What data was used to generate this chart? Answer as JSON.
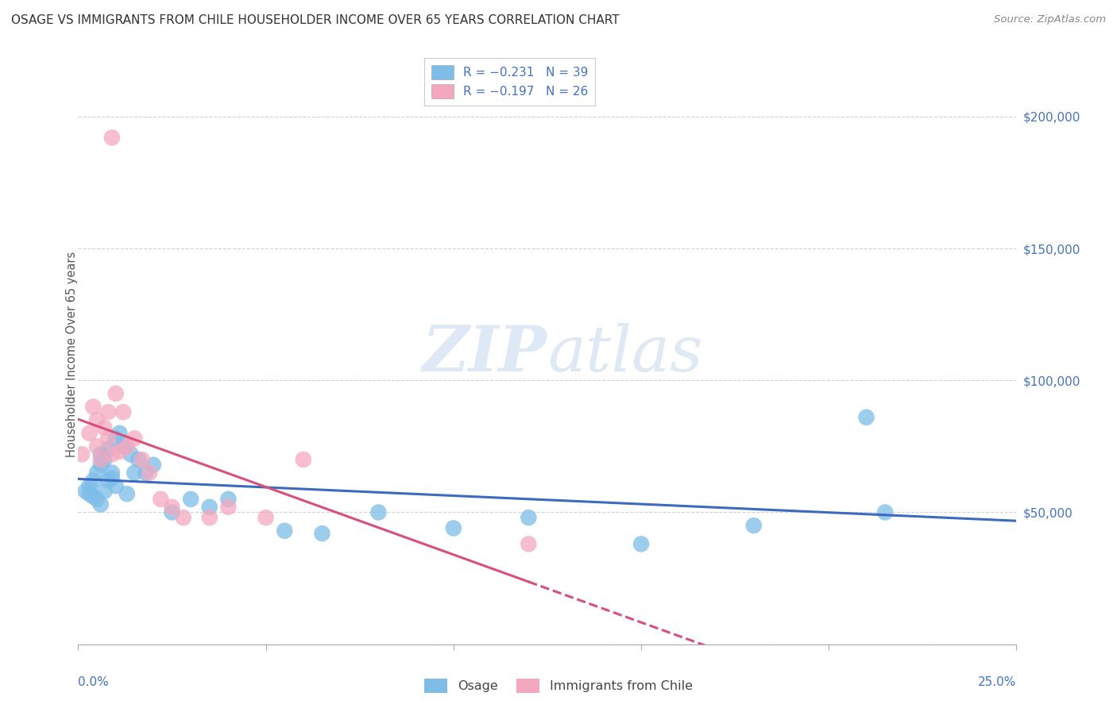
{
  "title": "OSAGE VS IMMIGRANTS FROM CHILE HOUSEHOLDER INCOME OVER 65 YEARS CORRELATION CHART",
  "source": "Source: ZipAtlas.com",
  "ylabel": "Householder Income Over 65 years",
  "xlim": [
    0.0,
    0.25
  ],
  "ylim": [
    0,
    220000
  ],
  "yticks": [
    0,
    50000,
    100000,
    150000,
    200000
  ],
  "blue_color": "#7dbde8",
  "pink_color": "#f4a8bf",
  "blue_line_color": "#3b6abf",
  "pink_line_color": "#d94f7a",
  "watermark_color": "#d0e4f5",
  "osage_x": [
    0.002,
    0.003,
    0.003,
    0.004,
    0.004,
    0.005,
    0.005,
    0.006,
    0.006,
    0.006,
    0.007,
    0.007,
    0.008,
    0.008,
    0.009,
    0.009,
    0.01,
    0.01,
    0.011,
    0.012,
    0.013,
    0.014,
    0.015,
    0.016,
    0.018,
    0.02,
    0.025,
    0.03,
    0.035,
    0.04,
    0.055,
    0.065,
    0.08,
    0.1,
    0.12,
    0.15,
    0.18,
    0.21,
    0.215
  ],
  "osage_y": [
    58000,
    57000,
    60000,
    56000,
    62000,
    55000,
    65000,
    53000,
    68000,
    72000,
    58000,
    70000,
    62000,
    74000,
    63000,
    65000,
    78000,
    60000,
    80000,
    75000,
    57000,
    72000,
    65000,
    70000,
    65000,
    68000,
    50000,
    55000,
    52000,
    55000,
    43000,
    42000,
    50000,
    44000,
    48000,
    38000,
    45000,
    86000,
    50000
  ],
  "chile_x": [
    0.001,
    0.003,
    0.004,
    0.005,
    0.005,
    0.006,
    0.007,
    0.008,
    0.008,
    0.009,
    0.01,
    0.011,
    0.012,
    0.013,
    0.015,
    0.017,
    0.019,
    0.022,
    0.025,
    0.028,
    0.035,
    0.04,
    0.05,
    0.06,
    0.12,
    0.009
  ],
  "chile_y": [
    72000,
    80000,
    90000,
    75000,
    85000,
    70000,
    82000,
    78000,
    88000,
    72000,
    95000,
    73000,
    88000,
    75000,
    78000,
    70000,
    65000,
    55000,
    52000,
    48000,
    48000,
    52000,
    48000,
    70000,
    38000,
    192000
  ]
}
